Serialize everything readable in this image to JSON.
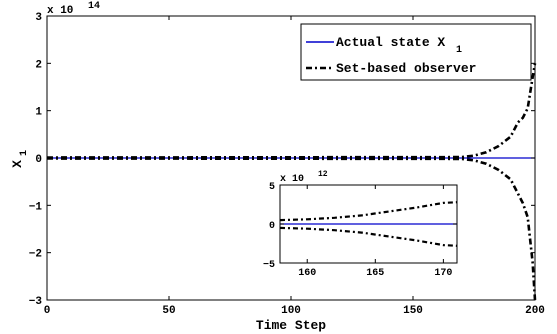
{
  "chart_data": [
    {
      "type": "line",
      "xlabel": "Time Step",
      "ylabel": "X",
      "ylabel_subscript": "1",
      "y_multiplier": {
        "base": "x 10",
        "exponent": "14"
      },
      "xlim": [
        0,
        200
      ],
      "ylim": [
        -3,
        3
      ],
      "x_ticks": [
        "0",
        "50",
        "100",
        "150",
        "200"
      ],
      "y_ticks": [
        "−3",
        "−2",
        "−1",
        "0",
        "1",
        "2",
        "3"
      ],
      "grid": false,
      "legend_position": "top-right",
      "series": [
        {
          "name": "Actual state X",
          "name_subscript": "1",
          "style": "solid",
          "color": "#0000cc",
          "x": [
            0,
            200
          ],
          "y": [
            0,
            0
          ]
        },
        {
          "name": "Set-based observer",
          "style": "dash-dot",
          "color": "#000000",
          "x": [
            0,
            170,
            175,
            180,
            185,
            190,
            193,
            195,
            197,
            199,
            200
          ],
          "y": [
            0.01,
            0.02,
            0.05,
            0.12,
            0.25,
            0.45,
            0.75,
            0.85,
            1.05,
            1.7,
            2.0
          ]
        },
        {
          "name": "",
          "style": "dash-dot",
          "color": "#000000",
          "x": [
            0,
            170,
            175,
            180,
            185,
            190,
            193,
            195,
            197,
            199,
            200
          ],
          "y": [
            -0.01,
            -0.02,
            -0.05,
            -0.12,
            -0.25,
            -0.45,
            -0.75,
            -0.95,
            -1.25,
            -2.2,
            -3.0
          ]
        }
      ]
    },
    {
      "type": "line",
      "role": "inset",
      "xlim": [
        158,
        171
      ],
      "ylim": [
        -5,
        5
      ],
      "x_ticks": [
        "160",
        "165",
        "170"
      ],
      "y_ticks": [
        "−5",
        "0",
        "5"
      ],
      "y_multiplier": {
        "base": "x 10",
        "exponent": "12"
      },
      "series": [
        {
          "style": "solid",
          "color": "#0000cc",
          "x": [
            158,
            171
          ],
          "y": [
            0,
            0
          ]
        },
        {
          "style": "dash-dot",
          "color": "#000000",
          "x": [
            158,
            160,
            162,
            164,
            166,
            168,
            170,
            171
          ],
          "y": [
            0.5,
            0.6,
            0.8,
            1.1,
            1.6,
            2.1,
            2.7,
            2.8
          ]
        },
        {
          "style": "dash-dot",
          "color": "#000000",
          "x": [
            158,
            160,
            162,
            164,
            166,
            168,
            170,
            171
          ],
          "y": [
            -0.5,
            -0.6,
            -0.8,
            -1.1,
            -1.6,
            -2.1,
            -2.7,
            -2.8
          ]
        }
      ]
    }
  ]
}
